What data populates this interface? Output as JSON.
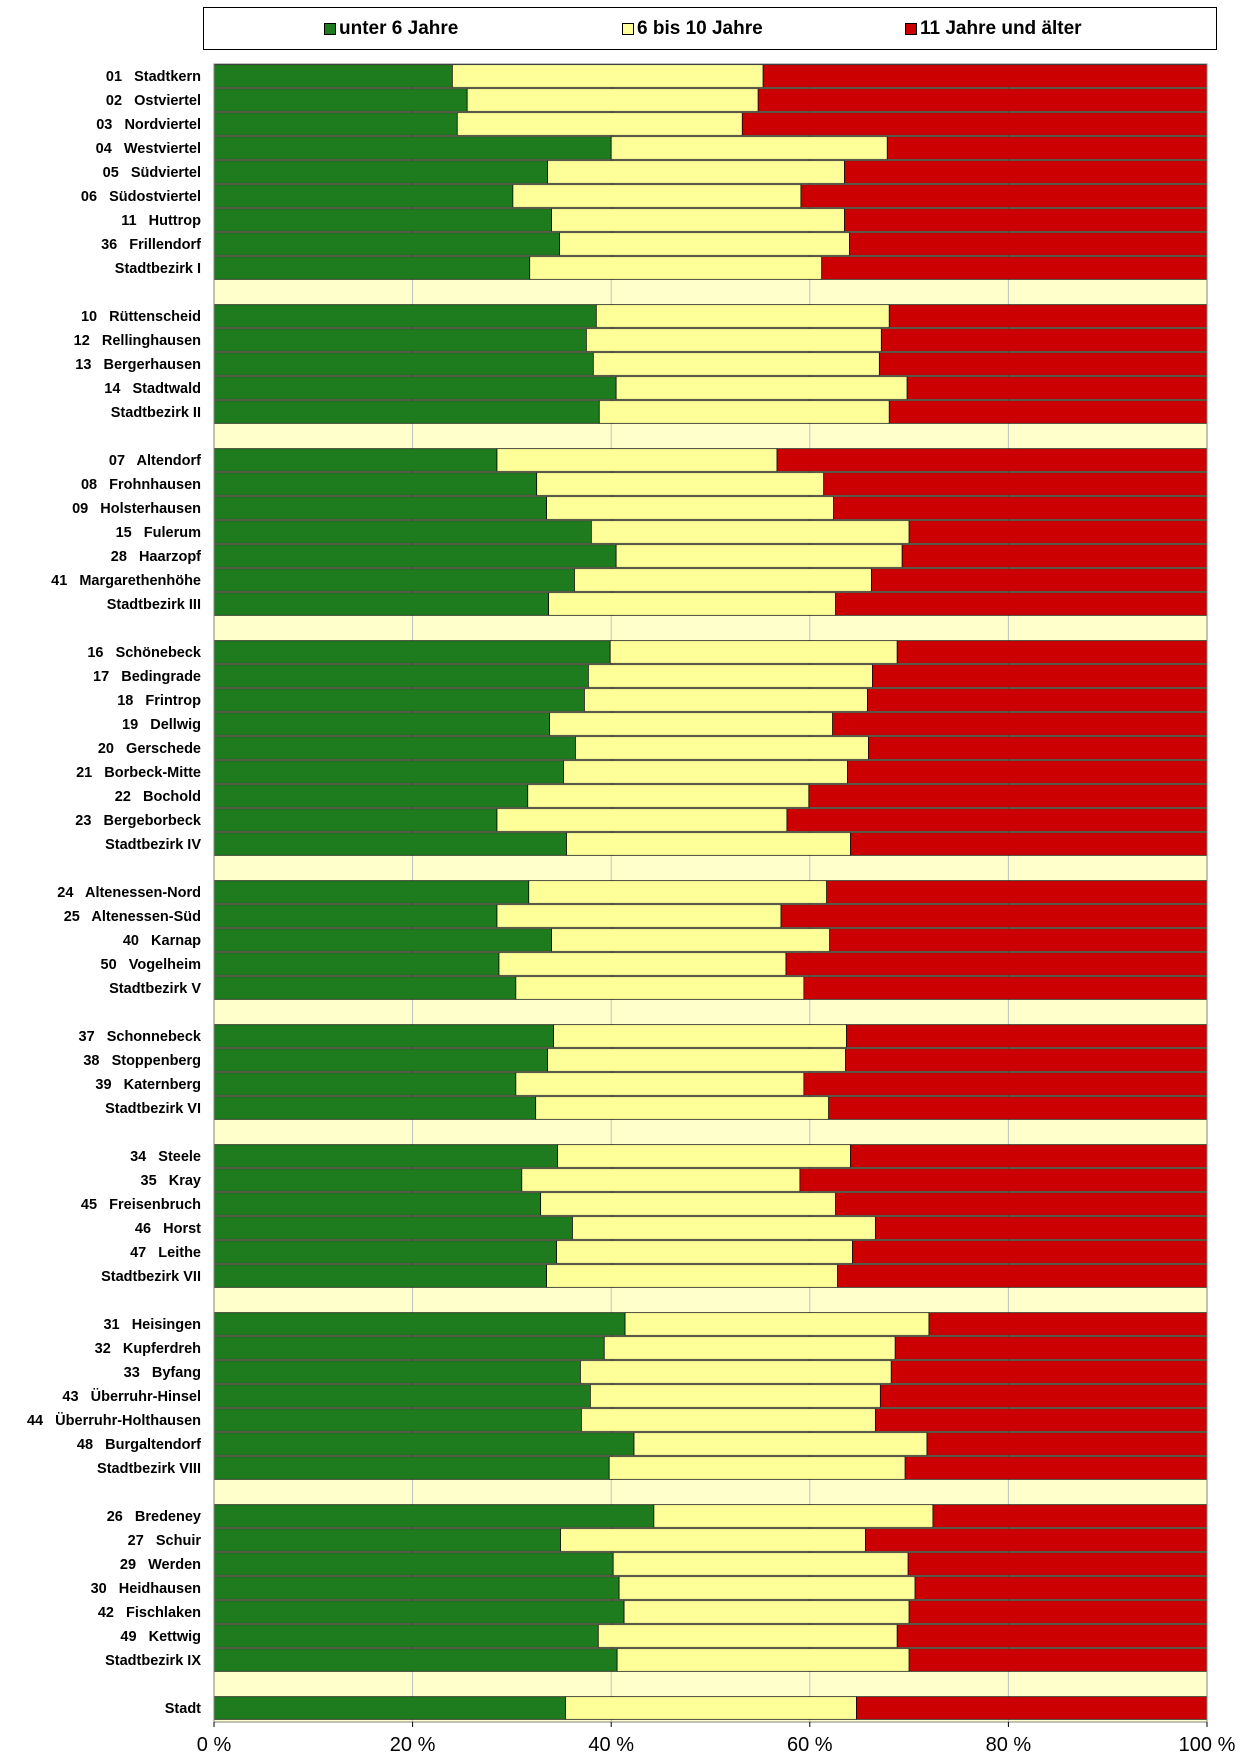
{
  "legend": {
    "items": [
      {
        "label": "unter 6 Jahre",
        "color": "#1e7b1e"
      },
      {
        "label": "6 bis 10 Jahre",
        "color": "#ffff99"
      },
      {
        "label": "11 Jahre und älter",
        "color": "#cc0000"
      }
    ]
  },
  "chart_data": {
    "type": "bar",
    "orientation": "horizontal",
    "stacked": "percent",
    "xlim": [
      0,
      100
    ],
    "x_ticks": [
      "0 %",
      "20 %",
      "40 %",
      "60 %",
      "80 %",
      "100 %"
    ],
    "grid": true,
    "legend_position": "top",
    "series_names": [
      "unter 6 Jahre",
      "6 bis 10 Jahre",
      "11 Jahre und älter"
    ],
    "groups": [
      {
        "rows": [
          {
            "label": "01   Stadtkern",
            "values": [
              24.0,
              31.3,
              44.7
            ]
          },
          {
            "label": "02   Ostviertel",
            "values": [
              25.5,
              29.3,
              45.2
            ]
          },
          {
            "label": "03   Nordviertel",
            "values": [
              24.5,
              28.7,
              46.8
            ]
          },
          {
            "label": "04   Westviertel",
            "values": [
              40.0,
              27.8,
              32.2
            ]
          },
          {
            "label": "05   Südviertel",
            "values": [
              33.6,
              29.9,
              36.5
            ]
          },
          {
            "label": "06   Südostviertel",
            "values": [
              30.1,
              29.0,
              40.9
            ]
          },
          {
            "label": "11   Huttrop",
            "values": [
              34.0,
              29.5,
              36.5
            ]
          },
          {
            "label": "36   Frillendorf",
            "values": [
              34.8,
              29.2,
              36.0
            ]
          },
          {
            "label": "Stadtbezirk I",
            "values": [
              31.8,
              29.4,
              38.8
            ]
          }
        ]
      },
      {
        "rows": [
          {
            "label": "10   Rüttenscheid",
            "values": [
              38.5,
              29.5,
              32.0
            ]
          },
          {
            "label": "12   Rellinghausen",
            "values": [
              37.5,
              29.7,
              32.8
            ]
          },
          {
            "label": "13   Bergerhausen",
            "values": [
              38.2,
              28.8,
              33.0
            ]
          },
          {
            "label": "14   Stadtwald",
            "values": [
              40.5,
              29.3,
              30.2
            ]
          },
          {
            "label": "Stadtbezirk II",
            "values": [
              38.8,
              29.2,
              32.0
            ]
          }
        ]
      },
      {
        "rows": [
          {
            "label": "07   Altendorf",
            "values": [
              28.5,
              28.2,
              43.3
            ]
          },
          {
            "label": "08   Frohnhausen",
            "values": [
              32.5,
              28.9,
              38.6
            ]
          },
          {
            "label": "09   Holsterhausen",
            "values": [
              33.5,
              28.9,
              37.6
            ]
          },
          {
            "label": "15   Fulerum",
            "values": [
              38.0,
              32.0,
              30.0
            ]
          },
          {
            "label": "28   Haarzopf",
            "values": [
              40.5,
              28.8,
              30.7
            ]
          },
          {
            "label": "41   Margarethenhöhe",
            "values": [
              36.3,
              29.9,
              33.8
            ]
          },
          {
            "label": "Stadtbezirk III",
            "values": [
              33.7,
              28.9,
              37.4
            ]
          }
        ]
      },
      {
        "rows": [
          {
            "label": "16   Schönebeck",
            "values": [
              39.9,
              28.9,
              31.2
            ]
          },
          {
            "label": "17   Bedingrade",
            "values": [
              37.7,
              28.6,
              33.7
            ]
          },
          {
            "label": "18   Frintrop",
            "values": [
              37.3,
              28.5,
              34.2
            ]
          },
          {
            "label": "19   Dellwig",
            "values": [
              33.8,
              28.5,
              37.7
            ]
          },
          {
            "label": "20   Gerschede",
            "values": [
              36.4,
              29.5,
              34.1
            ]
          },
          {
            "label": "21   Borbeck-Mitte",
            "values": [
              35.2,
              28.6,
              36.2
            ]
          },
          {
            "label": "22   Bochold",
            "values": [
              31.6,
              28.3,
              40.1
            ]
          },
          {
            "label": "23   Bergeborbeck",
            "values": [
              28.5,
              29.2,
              42.3
            ]
          },
          {
            "label": "Stadtbezirk IV",
            "values": [
              35.5,
              28.6,
              35.9
            ]
          }
        ]
      },
      {
        "rows": [
          {
            "label": "24   Altenessen-Nord",
            "values": [
              31.7,
              30.0,
              38.3
            ]
          },
          {
            "label": "25   Altenessen-Süd",
            "values": [
              28.5,
              28.6,
              42.9
            ]
          },
          {
            "label": "40   Karnap",
            "values": [
              34.0,
              28.0,
              38.0
            ]
          },
          {
            "label": "50   Vogelheim",
            "values": [
              28.7,
              28.9,
              42.4
            ]
          },
          {
            "label": "Stadtbezirk V",
            "values": [
              30.4,
              29.0,
              40.6
            ]
          }
        ]
      },
      {
        "rows": [
          {
            "label": "37   Schonnebeck",
            "values": [
              34.2,
              29.5,
              36.3
            ]
          },
          {
            "label": "38   Stoppenberg",
            "values": [
              33.6,
              30.0,
              36.4
            ]
          },
          {
            "label": "39   Katernberg",
            "values": [
              30.4,
              29.0,
              40.6
            ]
          },
          {
            "label": "Stadtbezirk VI",
            "values": [
              32.4,
              29.5,
              38.1
            ]
          }
        ]
      },
      {
        "rows": [
          {
            "label": "34   Steele",
            "values": [
              34.6,
              29.5,
              35.9
            ]
          },
          {
            "label": "35   Kray",
            "values": [
              31.0,
              28.0,
              41.0
            ]
          },
          {
            "label": "45   Freisenbruch",
            "values": [
              32.9,
              29.7,
              37.4
            ]
          },
          {
            "label": "46   Horst",
            "values": [
              36.1,
              30.5,
              33.4
            ]
          },
          {
            "label": "47   Leithe",
            "values": [
              34.5,
              29.8,
              35.7
            ]
          },
          {
            "label": "Stadtbezirk VII",
            "values": [
              33.5,
              29.3,
              37.2
            ]
          }
        ]
      },
      {
        "rows": [
          {
            "label": "31   Heisingen",
            "values": [
              41.4,
              30.6,
              28.0
            ]
          },
          {
            "label": "32   Kupferdreh",
            "values": [
              39.3,
              29.3,
              31.4
            ]
          },
          {
            "label": "33   Byfang",
            "values": [
              36.9,
              31.3,
              31.8
            ]
          },
          {
            "label": "43   Überruhr-Hinsel",
            "values": [
              37.9,
              29.2,
              32.9
            ]
          },
          {
            "label": "44   Überruhr-Holthausen",
            "values": [
              37.0,
              29.6,
              33.4
            ]
          },
          {
            "label": "48   Burgaltendorf",
            "values": [
              42.3,
              29.5,
              28.2
            ]
          },
          {
            "label": "Stadtbezirk VIII",
            "values": [
              39.8,
              29.8,
              30.4
            ]
          }
        ]
      },
      {
        "rows": [
          {
            "label": "26   Bredeney",
            "values": [
              44.3,
              28.1,
              27.6
            ]
          },
          {
            "label": "27   Schuir",
            "values": [
              34.9,
              30.7,
              34.4
            ]
          },
          {
            "label": "29   Werden",
            "values": [
              40.2,
              29.7,
              30.1
            ]
          },
          {
            "label": "30   Heidhausen",
            "values": [
              40.8,
              29.8,
              29.4
            ]
          },
          {
            "label": "42   Fischlaken",
            "values": [
              41.3,
              28.7,
              30.0
            ]
          },
          {
            "label": "49   Kettwig",
            "values": [
              38.7,
              30.1,
              31.2
            ]
          },
          {
            "label": "Stadtbezirk IX",
            "values": [
              40.6,
              29.4,
              30.0
            ]
          }
        ]
      },
      {
        "rows": [
          {
            "label": "Stadt",
            "values": [
              35.4,
              29.3,
              35.3
            ]
          }
        ]
      }
    ]
  }
}
